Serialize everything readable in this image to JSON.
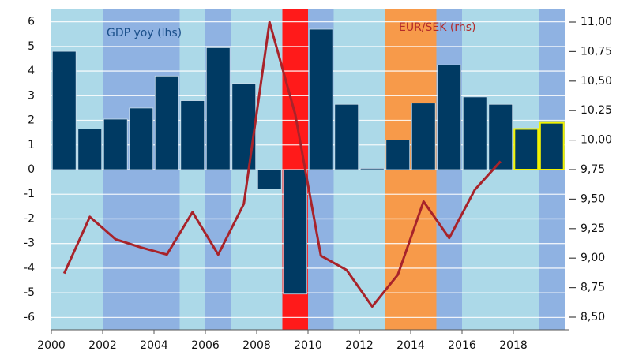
{
  "chart_data": {
    "type": "bar",
    "series": [
      {
        "name": "GDP yoy (lhs)",
        "type": "bar",
        "color": "#003a63",
        "name_color": "#1a4f8a",
        "x": [
          2000,
          2001,
          2002,
          2003,
          2004,
          2005,
          2006,
          2007,
          2008,
          2009,
          2010,
          2011,
          2012,
          2013,
          2014,
          2015,
          2016,
          2017,
          2018,
          2019
        ],
        "values": [
          4.8,
          1.65,
          2.05,
          2.5,
          3.8,
          2.8,
          4.95,
          3.5,
          -0.8,
          -5.05,
          5.7,
          2.65,
          0.05,
          1.2,
          2.7,
          4.25,
          2.95,
          2.65,
          1.65,
          1.9
        ],
        "edge_colors": [
          null,
          null,
          null,
          null,
          null,
          null,
          null,
          null,
          null,
          null,
          null,
          null,
          null,
          null,
          null,
          null,
          null,
          null,
          "#f2f200",
          "#f2f200"
        ]
      },
      {
        "name": "EUR/SEK (rhs)",
        "type": "line",
        "axis": "y2",
        "color": "#a8232a",
        "name_color": "#b22a2a",
        "x": [
          2000,
          2001,
          2002,
          2003,
          2004,
          2005,
          2006,
          2007,
          2008,
          2009,
          2010,
          2011,
          2012,
          2013,
          2014,
          2015,
          2016,
          2017,
          2018,
          2019
        ],
        "values": [
          8.87,
          9.35,
          9.16,
          9.09,
          9.03,
          9.39,
          9.03,
          9.46,
          11.0,
          10.22,
          9.02,
          8.9,
          8.59,
          8.86,
          9.48,
          9.17,
          9.58,
          9.82,
          null,
          null
        ]
      }
    ],
    "bands": [
      {
        "start": 2000,
        "end": 2002,
        "color": "#acd9e8"
      },
      {
        "start": 2002,
        "end": 2005,
        "color": "#8fb2e2"
      },
      {
        "start": 2005,
        "end": 2006,
        "color": "#acd9e8"
      },
      {
        "start": 2006,
        "end": 2007,
        "color": "#8fb2e2"
      },
      {
        "start": 2007,
        "end": 2009,
        "color": "#acd9e8"
      },
      {
        "start": 2009,
        "end": 2010,
        "color": "#ff1a1a"
      },
      {
        "start": 2010,
        "end": 2011,
        "color": "#8fb2e2"
      },
      {
        "start": 2011,
        "end": 2013,
        "color": "#acd9e8"
      },
      {
        "start": 2013,
        "end": 2015,
        "color": "#f79a4a"
      },
      {
        "start": 2015,
        "end": 2016,
        "color": "#8fb2e2"
      },
      {
        "start": 2016,
        "end": 2019,
        "color": "#acd9e8"
      },
      {
        "start": 2019,
        "end": 2020,
        "color": "#8fb2e2"
      }
    ],
    "xlim": [
      2000,
      2020
    ],
    "xticks": [
      2000,
      2002,
      2004,
      2006,
      2008,
      2010,
      2012,
      2014,
      2016,
      2018
    ],
    "ylim": [
      -6.5,
      6.5
    ],
    "yticks": [
      -6,
      -5,
      -4,
      -3,
      -2,
      -1,
      0,
      1,
      2,
      3,
      4,
      5,
      6
    ],
    "y2lim": [
      8.393,
      11.107
    ],
    "y2ticks": [
      {
        "value": 8.5,
        "label": "8,50"
      },
      {
        "value": 8.75,
        "label": "8,75"
      },
      {
        "value": 9.0,
        "label": "9,00"
      },
      {
        "value": 9.25,
        "label": "9,25"
      },
      {
        "value": 9.5,
        "label": "9,50"
      },
      {
        "value": 9.75,
        "label": "9,75"
      },
      {
        "value": 10.0,
        "label": "10,00"
      },
      {
        "value": 10.25,
        "label": "10,25"
      },
      {
        "value": 10.5,
        "label": "10,50"
      },
      {
        "value": 10.75,
        "label": "10,75"
      },
      {
        "value": 11.0,
        "label": "11,00"
      }
    ],
    "grid": true
  }
}
